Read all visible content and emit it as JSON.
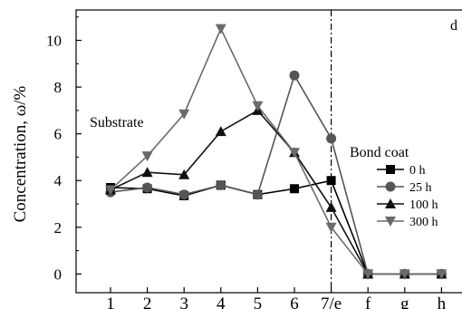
{
  "chart_data": {
    "type": "line",
    "panel_label": "d",
    "ylabel": "Concentration, ω/%",
    "xlabel": "",
    "categories": [
      "1",
      "2",
      "3",
      "4",
      "5",
      "6",
      "7/e",
      "f",
      "g",
      "h"
    ],
    "ylim": [
      -0.8,
      11.3
    ],
    "yticks": [
      0,
      2,
      4,
      6,
      8,
      10
    ],
    "grid": false,
    "legend_position": "right",
    "annotations": {
      "substrate": "Substrate",
      "bond_coat": "Bond coat"
    },
    "interface_line_category": "7/e",
    "series": [
      {
        "name": "0 h",
        "marker": "square",
        "color": "#000000",
        "values": [
          3.7,
          3.65,
          3.35,
          3.8,
          3.4,
          3.65,
          4.0,
          0,
          0,
          0
        ]
      },
      {
        "name": "25 h",
        "marker": "circle",
        "color": "#555555",
        "values": [
          3.5,
          3.7,
          3.4,
          3.8,
          3.4,
          8.5,
          5.8,
          0,
          0,
          0
        ]
      },
      {
        "name": "100 h",
        "marker": "triangle-up",
        "color": "#111111",
        "values": [
          3.6,
          4.35,
          4.25,
          6.1,
          7.0,
          5.2,
          2.85,
          0,
          0,
          0
        ]
      },
      {
        "name": "300 h",
        "marker": "triangle-down",
        "color": "#6a6a6a",
        "values": [
          3.6,
          5.05,
          6.85,
          10.5,
          7.2,
          5.2,
          2.0,
          0,
          0,
          0
        ]
      }
    ]
  }
}
